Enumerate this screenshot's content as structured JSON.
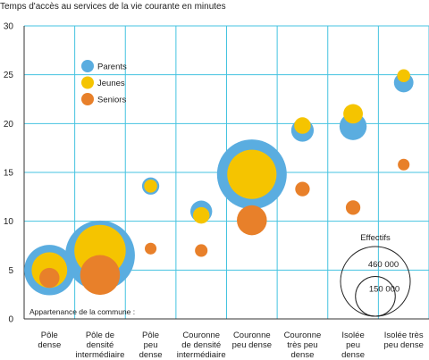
{
  "chart_data": {
    "type": "bubble",
    "title": "Temps d'accès au services de la vie courante en minutes",
    "ylim": [
      0,
      30
    ],
    "yticks": [
      0,
      5,
      10,
      15,
      20,
      25,
      30
    ],
    "grid": true,
    "x_annotation": "Appartenance de la commune :",
    "categories": [
      [
        "Pôle",
        "dense"
      ],
      [
        "Pôle de",
        "densité",
        "intermédiaire"
      ],
      [
        "Pôle",
        "peu",
        "dense"
      ],
      [
        "Couronne",
        "de densité",
        "intermédiaire"
      ],
      [
        "Couronne",
        "peu dense"
      ],
      [
        "Couronne",
        "très peu",
        "dense"
      ],
      [
        "Isolée",
        "peu",
        "dense"
      ],
      [
        "Isolée très",
        "peu dense"
      ]
    ],
    "legend": {
      "position": "top-left",
      "entries": [
        {
          "name": "Parents",
          "color": "#5aade0"
        },
        {
          "name": "Jeunes",
          "color": "#f5c400"
        },
        {
          "name": "Seniors",
          "color": "#e8802a"
        }
      ]
    },
    "size_legend": {
      "title": "Effectifs",
      "values": [
        460000,
        150000
      ],
      "labels": [
        "460 000",
        "150 000"
      ]
    },
    "series": [
      {
        "name": "Parents",
        "color": "#5aade0",
        "y": [
          5.0,
          6.5,
          13.6,
          11.0,
          14.8,
          19.3,
          19.7,
          24.2
        ],
        "sizes": [
          240000,
          460000,
          28000,
          45000,
          460000,
          48000,
          70000,
          36000
        ]
      },
      {
        "name": "Jeunes",
        "color": "#f5c400",
        "y": [
          5.0,
          7.0,
          13.6,
          10.6,
          14.8,
          19.8,
          21.0,
          24.9
        ],
        "sizes": [
          120000,
          250000,
          16000,
          26000,
          230000,
          26000,
          36000,
          16000
        ]
      },
      {
        "name": "Seniors",
        "color": "#e8802a",
        "y": [
          4.2,
          4.5,
          7.2,
          7.0,
          10.1,
          13.3,
          11.4,
          15.8
        ],
        "sizes": [
          38000,
          150000,
          13000,
          15000,
          85000,
          20000,
          20000,
          13000
        ]
      }
    ]
  }
}
